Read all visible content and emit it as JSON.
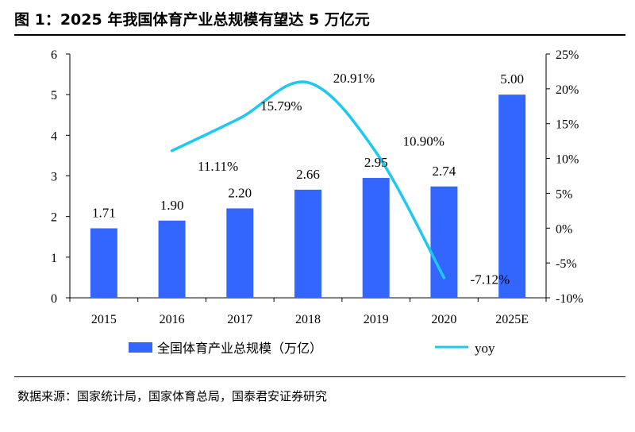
{
  "title": "图 1：2025 年我国体育产业总规模有望达 5 万亿元",
  "source": "数据来源：国家统计局，国家体育总局，国泰君安证券研究",
  "chart_data": {
    "type": "bar+line",
    "categories": [
      "2015",
      "2016",
      "2017",
      "2018",
      "2019",
      "2020",
      "2025E"
    ],
    "series": [
      {
        "name": "全国体育产业总规模（万亿）",
        "type": "bar",
        "axis": "left",
        "values": [
          1.71,
          1.9,
          2.2,
          2.66,
          2.95,
          2.74,
          5.0
        ],
        "labels": [
          "1.71",
          "1.90",
          "2.20",
          "2.66",
          "2.95",
          "2.74",
          "5.00"
        ],
        "color": "#3366FF"
      },
      {
        "name": "yoy",
        "type": "line",
        "axis": "right",
        "values": [
          null,
          11.11,
          15.79,
          20.91,
          10.9,
          -7.12,
          null
        ],
        "labels": [
          "",
          "11.11%",
          "15.79%",
          "20.91%",
          "10.90%",
          "-7.12%",
          ""
        ],
        "color": "#1EC8F0"
      }
    ],
    "ylim_left": [
      0,
      6
    ],
    "yticks_left": [
      "0",
      "1",
      "2",
      "3",
      "4",
      "5",
      "6"
    ],
    "ylim_right": [
      -10,
      25
    ],
    "yticks_right": [
      "-10%",
      "-5%",
      "0%",
      "5%",
      "10%",
      "15%",
      "20%",
      "25%"
    ],
    "grid": false,
    "legend_position": "bottom"
  }
}
